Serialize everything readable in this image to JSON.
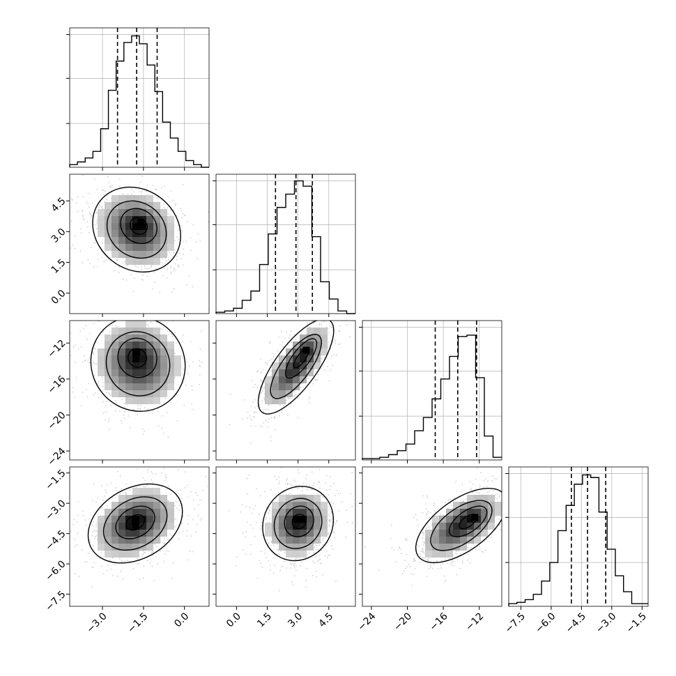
{
  "figure": {
    "style": "corner plot"
  },
  "colors": {
    "contour": "#000000",
    "density_dark": "#000000",
    "density_light": "#f0f0f0",
    "scatter": "#bdbdbd",
    "grid": "#b0b0b0"
  },
  "chart_data": {
    "type": "corner",
    "grid": true,
    "parameters": [
      {
        "index": 0,
        "range": [
          -4.2,
          0.9
        ],
        "ticks": [
          "−3.0",
          "−1.5",
          "0.0"
        ],
        "tick_values": [
          -3.0,
          -1.5,
          0.0
        ],
        "quantiles": [
          -2.45,
          -1.75,
          -1.0
        ],
        "median": -1.75
      },
      {
        "index": 1,
        "range": [
          -1.0,
          5.8
        ],
        "ticks": [
          "0.0",
          "1.5",
          "3.0",
          "4.5"
        ],
        "tick_values": [
          0.0,
          1.5,
          3.0,
          4.5
        ],
        "quantiles": [
          1.9,
          2.9,
          3.7
        ],
        "median": 2.9
      },
      {
        "index": 2,
        "range": [
          -25.0,
          -9.5
        ],
        "ticks": [
          "−24",
          "−20",
          "−16",
          "−12"
        ],
        "tick_values": [
          -24,
          -20,
          -16,
          -12
        ],
        "quantiles": [
          -16.9,
          -14.4,
          -12.3
        ],
        "median": -14.4
      },
      {
        "index": 3,
        "range": [
          -8.1,
          -1.2
        ],
        "ticks": [
          "−7.5",
          "−6.0",
          "−4.5",
          "−3.0",
          "−1.5"
        ],
        "tick_values": [
          -7.5,
          -6.0,
          -4.5,
          -3.0,
          -1.5
        ],
        "quantiles": [
          -5.0,
          -4.2,
          -3.3
        ],
        "median": -4.2
      }
    ],
    "histograms": [
      {
        "param": 0,
        "counts": [
          0.02,
          0.04,
          0.07,
          0.12,
          0.29,
          0.58,
          0.8,
          0.94,
          0.99,
          0.93,
          0.77,
          0.57,
          0.34,
          0.22,
          0.12,
          0.05,
          0.02,
          0.0
        ],
        "ylim": [
          0,
          1.05
        ],
        "y_ticks": [
          0.33,
          0.67,
          1.0
        ]
      },
      {
        "param": 1,
        "counts": [
          0.01,
          0.02,
          0.04,
          0.1,
          0.17,
          0.37,
          0.6,
          0.8,
          0.9,
          1.0,
          0.96,
          0.58,
          0.24,
          0.11,
          0.02,
          0.0
        ],
        "ylim": [
          0,
          1.05
        ],
        "y_ticks": [
          0.33,
          0.67,
          1.0
        ]
      },
      {
        "param": 2,
        "counts": [
          0.01,
          0.01,
          0.02,
          0.04,
          0.07,
          0.12,
          0.22,
          0.32,
          0.46,
          0.61,
          0.78,
          0.93,
          0.94,
          0.62,
          0.18,
          0.02
        ],
        "ylim": [
          0,
          1.05
        ],
        "y_ticks": [
          0.33,
          0.67,
          1.0
        ]
      },
      {
        "param": 3,
        "counts": [
          0.02,
          0.03,
          0.05,
          0.09,
          0.19,
          0.33,
          0.57,
          0.76,
          0.92,
          0.99,
          0.97,
          0.71,
          0.43,
          0.23,
          0.11,
          0.02,
          0.02
        ],
        "ylim": [
          0,
          1.05
        ],
        "y_ticks": [
          0.33,
          0.67,
          1.0
        ]
      }
    ],
    "pairs": [
      {
        "x": 0,
        "y": 1,
        "center": [
          -1.75,
          3.1
        ],
        "sd": [
          0.7,
          0.9
        ],
        "rho": -0.15,
        "peak": [
          -1.6,
          3.45
        ]
      },
      {
        "x": 0,
        "y": 2,
        "center": [
          -1.7,
          -14.3
        ],
        "sd": [
          0.75,
          2.3
        ],
        "rho": -0.05,
        "peak": [
          -1.75,
          -13.0
        ]
      },
      {
        "x": 1,
        "y": 2,
        "center": [
          2.9,
          -14.6
        ],
        "sd": [
          0.8,
          2.3
        ],
        "rho": 0.75,
        "peak": [
          3.4,
          -12.8
        ]
      },
      {
        "x": 0,
        "y": 3,
        "center": [
          -1.8,
          -4.0
        ],
        "sd": [
          0.75,
          0.85
        ],
        "rho": 0.3,
        "peak": [
          -1.8,
          -3.9
        ]
      },
      {
        "x": 1,
        "y": 3,
        "center": [
          3.0,
          -4.0
        ],
        "sd": [
          0.75,
          0.8
        ],
        "rho": 0.1,
        "peak": [
          3.1,
          -3.8
        ]
      },
      {
        "x": 2,
        "y": 3,
        "center": [
          -14.0,
          -4.1
        ],
        "sd": [
          2.2,
          0.8
        ],
        "rho": 0.6,
        "peak": [
          -12.5,
          -3.7
        ]
      }
    ],
    "contour_levels": [
      0.12,
      0.4,
      0.68,
      0.9
    ]
  }
}
